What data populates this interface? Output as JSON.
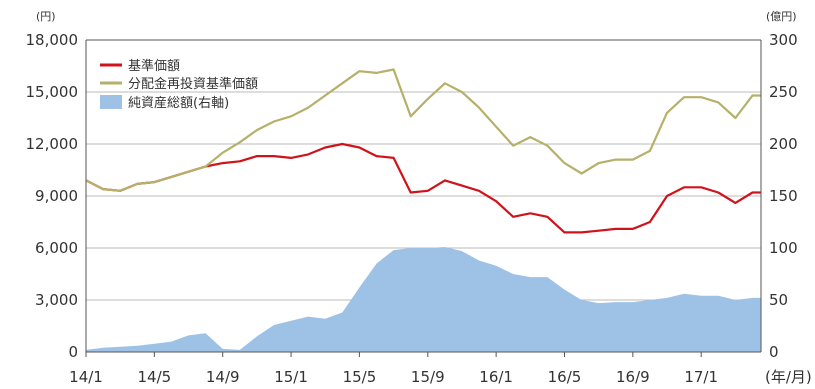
{
  "chart_data": {
    "type": "line",
    "left_unit": "(円)",
    "right_unit": "(億円)",
    "x_unit": "(年/月)",
    "x_ticks": [
      "14/1",
      "14/5",
      "14/9",
      "15/1",
      "15/5",
      "15/9",
      "16/1",
      "16/5",
      "16/9",
      "17/1"
    ],
    "left_axis": {
      "ylim": [
        0,
        18000
      ],
      "ticks": [
        "18,000",
        "15,000",
        "12,000",
        "9,000",
        "6,000",
        "3,000",
        "0"
      ]
    },
    "right_axis": {
      "ylim": [
        0,
        300
      ],
      "ticks": [
        "300",
        "250",
        "200",
        "150",
        "100",
        "50",
        "0"
      ]
    },
    "grid": "horizontal",
    "legend_position": "top-left",
    "series": [
      {
        "name": "基準価額",
        "color": "#d0121b",
        "axis": "left",
        "x": [
          "14/1",
          "14/2",
          "14/3",
          "14/4",
          "14/5",
          "14/6",
          "14/7",
          "14/8",
          "14/9",
          "14/10",
          "14/11",
          "14/12",
          "15/1",
          "15/2",
          "15/3",
          "15/4",
          "15/5",
          "15/6",
          "15/7",
          "15/8",
          "15/9",
          "15/10",
          "15/11",
          "15/12",
          "16/1",
          "16/2",
          "16/3",
          "16/4",
          "16/5",
          "16/6",
          "16/7",
          "16/8",
          "16/9",
          "16/10",
          "16/11",
          "16/12",
          "17/1",
          "17/2",
          "17/3",
          "17/4"
        ],
        "values": [
          9900,
          9400,
          9300,
          9700,
          9800,
          10100,
          10400,
          10700,
          10900,
          11000,
          11300,
          11300,
          11200,
          11400,
          11800,
          12000,
          11800,
          11300,
          11200,
          9200,
          9300,
          9900,
          9600,
          9300,
          8700,
          7800,
          8000,
          7800,
          6900,
          6900,
          7000,
          7100,
          7100,
          7500,
          9000,
          9500,
          9500,
          9200,
          8600,
          9200
        ]
      },
      {
        "name": "分配金再投資基準価額",
        "color": "#b6b06a",
        "axis": "left",
        "x": [
          "14/1",
          "14/2",
          "14/3",
          "14/4",
          "14/5",
          "14/6",
          "14/7",
          "14/8",
          "14/9",
          "14/10",
          "14/11",
          "14/12",
          "15/1",
          "15/2",
          "15/3",
          "15/4",
          "15/5",
          "15/6",
          "15/7",
          "15/8",
          "15/9",
          "15/10",
          "15/11",
          "15/12",
          "16/1",
          "16/2",
          "16/3",
          "16/4",
          "16/5",
          "16/6",
          "16/7",
          "16/8",
          "16/9",
          "16/10",
          "16/11",
          "16/12",
          "17/1",
          "17/2",
          "17/3",
          "17/4"
        ],
        "values": [
          9900,
          9400,
          9300,
          9700,
          9800,
          10100,
          10400,
          10700,
          11500,
          12100,
          12800,
          13300,
          13600,
          14100,
          14800,
          15500,
          16200,
          16100,
          16300,
          13600,
          14600,
          15500,
          15000,
          14100,
          13000,
          11900,
          12400,
          11900,
          10900,
          10300,
          10900,
          11100,
          11100,
          11600,
          13800,
          14700,
          14700,
          14400,
          13500,
          14800
        ]
      },
      {
        "name": "純資産総額(右軸)",
        "color": "#9ec2e6",
        "axis": "right",
        "x": [
          "14/1",
          "14/2",
          "14/3",
          "14/4",
          "14/5",
          "14/6",
          "14/7",
          "14/8",
          "14/9",
          "14/10",
          "14/11",
          "14/12",
          "15/1",
          "15/2",
          "15/3",
          "15/4",
          "15/5",
          "15/6",
          "15/7",
          "15/8",
          "15/9",
          "15/10",
          "15/11",
          "15/12",
          "16/1",
          "16/2",
          "16/3",
          "16/4",
          "16/5",
          "16/6",
          "16/7",
          "16/8",
          "16/9",
          "16/10",
          "16/11",
          "16/12",
          "17/1",
          "17/2",
          "17/3",
          "17/4"
        ],
        "values": [
          2,
          4,
          5,
          6,
          8,
          10,
          16,
          18,
          3,
          2,
          15,
          26,
          30,
          34,
          32,
          38,
          62,
          85,
          98,
          100,
          100,
          101,
          97,
          88,
          83,
          75,
          72,
          72,
          60,
          50,
          47,
          48,
          48,
          50,
          52,
          56,
          54,
          54,
          50,
          52
        ]
      }
    ]
  }
}
